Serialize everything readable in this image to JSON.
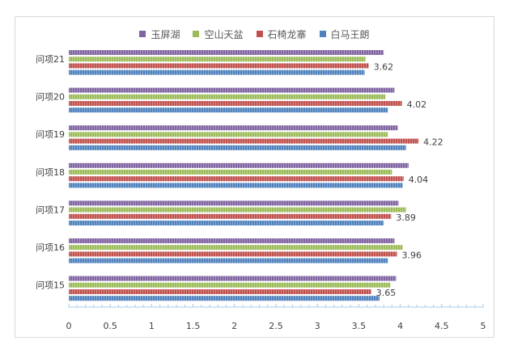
{
  "chart_data": {
    "type": "bar",
    "orientation": "horizontal",
    "categories": [
      "问项21",
      "问项20",
      "问项19",
      "问项18",
      "问项17",
      "问项16",
      "问项15"
    ],
    "series": [
      {
        "name": "玉屏湖",
        "color": "#8064a2",
        "values": [
          3.8,
          3.93,
          3.97,
          4.1,
          3.98,
          3.93,
          3.95
        ]
      },
      {
        "name": "空山天盆",
        "color": "#9bbb59",
        "values": [
          3.58,
          3.82,
          3.85,
          3.9,
          4.07,
          4.03,
          3.88
        ]
      },
      {
        "name": "石椅龙寨",
        "color": "#c0504d",
        "values": [
          3.62,
          4.02,
          4.22,
          4.04,
          3.89,
          3.96,
          3.65
        ]
      },
      {
        "name": "白马王朗",
        "color": "#4f81bd",
        "values": [
          3.57,
          3.85,
          4.07,
          4.03,
          3.8,
          3.85,
          3.75
        ]
      }
    ],
    "data_labels": {
      "series": "石椅龙寨",
      "values": [
        "3.62",
        "4.02",
        "4.22",
        "4.04",
        "3.89",
        "3.96",
        "3.65"
      ]
    },
    "xlim": [
      0,
      5
    ],
    "x_ticks": [
      "0",
      "0.5",
      "1",
      "1.5",
      "2",
      "2.5",
      "3",
      "3.5",
      "4",
      "4.5",
      "5"
    ],
    "legend_position": "top",
    "grid": false
  }
}
